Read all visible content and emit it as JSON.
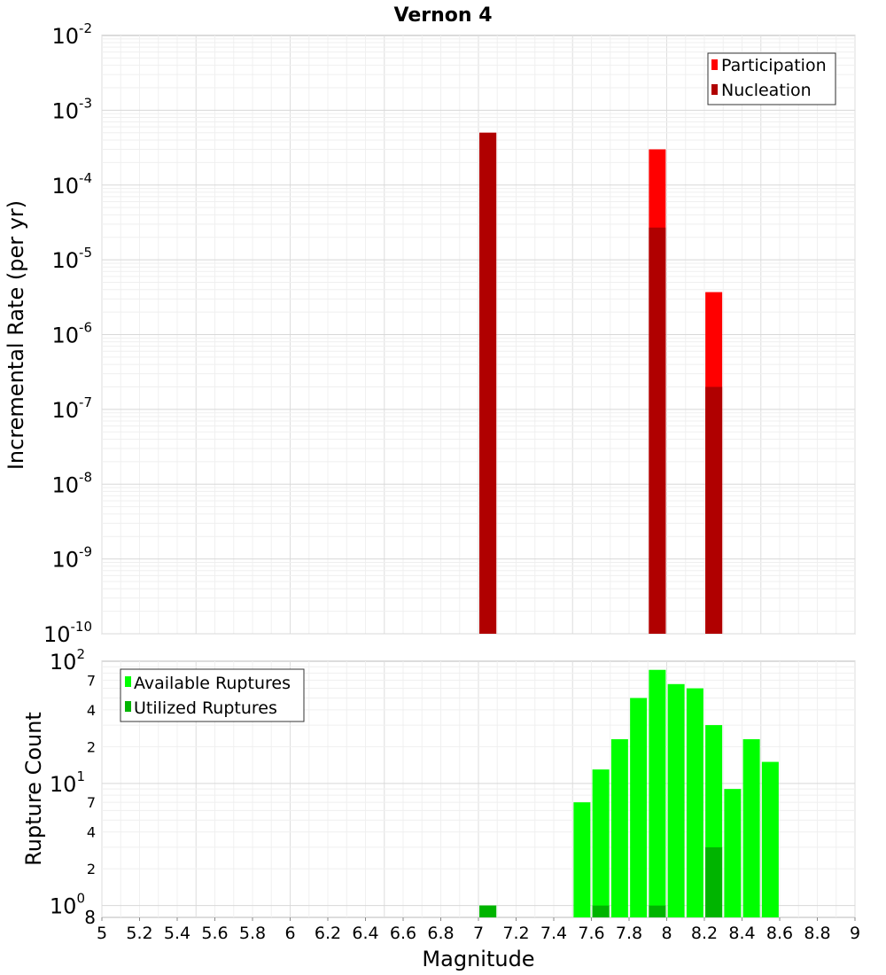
{
  "chart_data": [
    {
      "type": "bar",
      "title": "Vernon 4",
      "ylabel": "Incremental Rate (per yr)",
      "xlabel": "",
      "yscale": "log",
      "ylim": [
        1e-10,
        0.01
      ],
      "xlim": [
        5,
        9
      ],
      "grid": true,
      "legend_position": "top-right",
      "y_tick_labels": [
        {
          "base": "10",
          "exp": "-10"
        },
        {
          "base": "10",
          "exp": "-9"
        },
        {
          "base": "10",
          "exp": "-8"
        },
        {
          "base": "10",
          "exp": "-7"
        },
        {
          "base": "10",
          "exp": "-6"
        },
        {
          "base": "10",
          "exp": "-5"
        },
        {
          "base": "10",
          "exp": "-4"
        },
        {
          "base": "10",
          "exp": "-3"
        },
        {
          "base": "10",
          "exp": "-2"
        }
      ],
      "series": [
        {
          "name": "Participation",
          "color": "#ff0000",
          "points": [
            [
              7.05,
              0.0005
            ],
            [
              7.95,
              0.0003
            ],
            [
              8.25,
              3.7e-06
            ]
          ]
        },
        {
          "name": "Nucleation",
          "color": "#b00000",
          "points": [
            [
              7.05,
              0.0005
            ],
            [
              7.95,
              2.7e-05
            ],
            [
              8.25,
              2e-07
            ]
          ]
        }
      ]
    },
    {
      "type": "bar",
      "title": "",
      "ylabel": "Rupture Count",
      "xlabel": "Magnitude",
      "yscale": "log",
      "ylim": [
        0.8,
        100
      ],
      "xlim": [
        5,
        9
      ],
      "grid": true,
      "legend_position": "top-left",
      "x_ticks": [
        "5",
        "5.2",
        "5.4",
        "5.6",
        "5.8",
        "6",
        "6.2",
        "6.4",
        "6.6",
        "6.8",
        "7",
        "7.2",
        "7.4",
        "7.6",
        "7.8",
        "8",
        "8.2",
        "8.4",
        "8.6",
        "8.8",
        "9"
      ],
      "y_major_labels": [
        {
          "base": "10",
          "exp": "0"
        },
        {
          "base": "10",
          "exp": "1"
        },
        {
          "base": "10",
          "exp": "2"
        }
      ],
      "y_minor_labels": [
        "8",
        "2",
        "4",
        "7",
        "2",
        "4",
        "7"
      ],
      "series": [
        {
          "name": "Available Ruptures",
          "color": "#00ff00",
          "points": [
            [
              7.05,
              1
            ],
            [
              7.55,
              7
            ],
            [
              7.65,
              13
            ],
            [
              7.75,
              23
            ],
            [
              7.85,
              50
            ],
            [
              7.95,
              85
            ],
            [
              8.05,
              65
            ],
            [
              8.15,
              60
            ],
            [
              8.25,
              30
            ],
            [
              8.35,
              9
            ],
            [
              8.45,
              23
            ],
            [
              8.55,
              15
            ]
          ]
        },
        {
          "name": "Utilized Ruptures",
          "color": "#00b400",
          "points": [
            [
              7.05,
              1
            ],
            [
              7.65,
              1
            ],
            [
              7.95,
              1
            ],
            [
              8.25,
              3
            ]
          ]
        }
      ]
    }
  ]
}
